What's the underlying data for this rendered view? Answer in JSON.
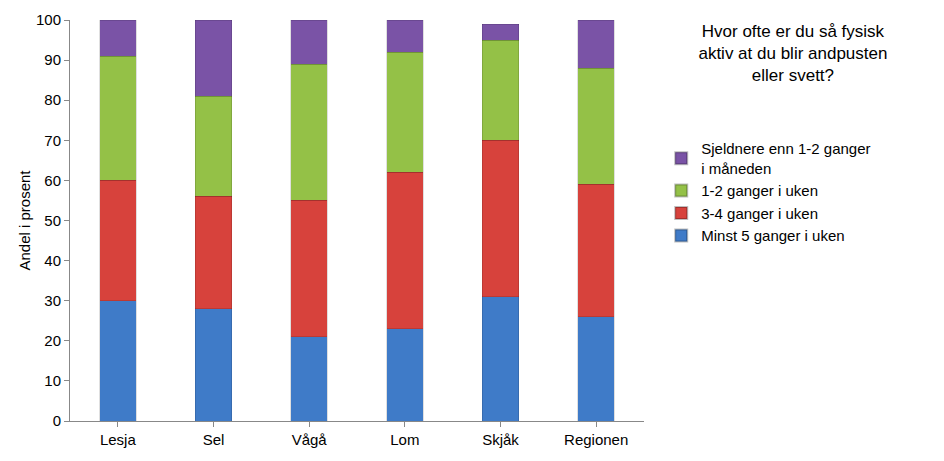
{
  "chart_data": {
    "type": "bar",
    "stacked": true,
    "title": "Hvor ofte er du så fysisk aktiv at du blir andpusten eller svett?",
    "y_label": "Andel i prosent",
    "categories": [
      "Lesja",
      "Sel",
      "Vågå",
      "Lom",
      "Skjåk",
      "Regionen"
    ],
    "series": [
      {
        "name": "Minst 5 ganger i uken",
        "color": "#3f7bc8",
        "values": [
          30,
          28,
          21,
          23,
          31,
          26
        ]
      },
      {
        "name": "3-4 ganger i uken",
        "color": "#d7423c",
        "values": [
          30,
          28,
          34,
          39,
          39,
          33
        ]
      },
      {
        "name": "1-2 ganger i uken",
        "color": "#94c147",
        "values": [
          31,
          25,
          34,
          30,
          25,
          29
        ]
      },
      {
        "name": "Sjeldnere enn 1-2 ganger i måneden",
        "color": "#7a53a6",
        "values": [
          9,
          19,
          11,
          8,
          4,
          12
        ]
      }
    ],
    "ylim": [
      0,
      100
    ],
    "yticks": [
      0,
      10,
      20,
      30,
      40,
      50,
      60,
      70,
      80,
      90,
      100
    ],
    "grid": false,
    "legend": "right"
  }
}
